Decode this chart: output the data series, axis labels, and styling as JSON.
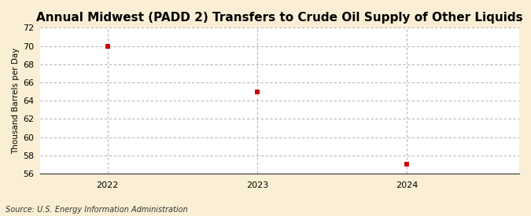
{
  "title": "Annual Midwest (PADD 2) Transfers to Crude Oil Supply of Other Liquids",
  "ylabel": "Thousand Barrels per Day",
  "source": "Source: U.S. Energy Information Administration",
  "x": [
    2022,
    2023,
    2024
  ],
  "y": [
    70.0,
    65.0,
    57.0
  ],
  "ylim": [
    56,
    72
  ],
  "yticks": [
    56,
    58,
    60,
    62,
    64,
    66,
    68,
    70,
    72
  ],
  "xticks": [
    2022,
    2023,
    2024
  ],
  "xlim_left": 2021.55,
  "xlim_right": 2024.75,
  "marker_color": "#cc0000",
  "marker": "s",
  "marker_size": 4,
  "grid_color": "#999999",
  "plot_bg_color": "#ffffff",
  "fig_bg_color": "#faefd4",
  "title_fontsize": 11,
  "label_fontsize": 7.5,
  "tick_fontsize": 8,
  "source_fontsize": 7
}
